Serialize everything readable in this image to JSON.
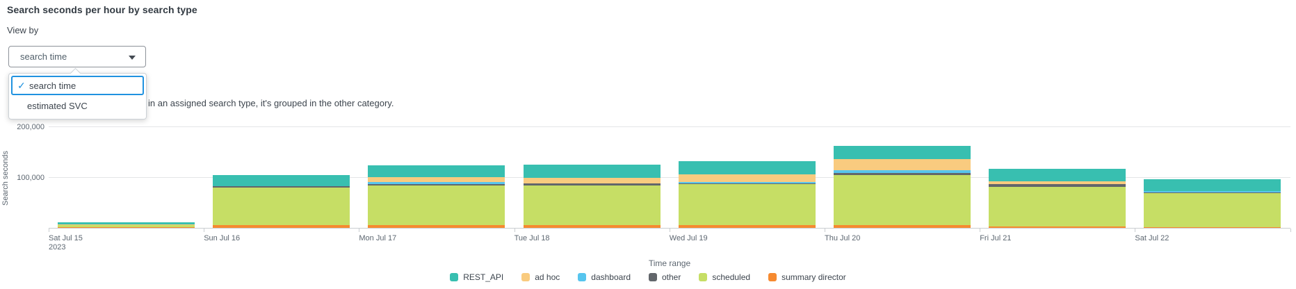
{
  "header": {
    "title": "Search seconds per hour by search type"
  },
  "view_by": {
    "label": "View by",
    "selected_value": "search time",
    "menu": {
      "checkmark_icon": "✓",
      "items": [
        {
          "label": "search time",
          "selected": true
        },
        {
          "label": "estimated SVC",
          "selected": false
        }
      ]
    }
  },
  "note": {
    "visible_text": "in an assigned search type, it's grouped in the other category."
  },
  "accent_color": "#2092e0",
  "chart_data": {
    "type": "bar",
    "stacked": true,
    "ylabel": "Search seconds",
    "xlabel": "Time range",
    "ylim": [
      0,
      220000
    ],
    "grid": true,
    "legend_position": "bottom",
    "yticks": [
      {
        "value": 100000,
        "label": "100,000"
      },
      {
        "value": 200000,
        "label": "200,000"
      }
    ],
    "categories": [
      "Sat Jul 15",
      "Sun Jul 16",
      "Mon Jul 17",
      "Tue Jul 18",
      "Wed Jul 19",
      "Thu Jul 20",
      "Fri Jul 21",
      "Sat Jul 22"
    ],
    "first_tick_year_line": "2023",
    "stack_order_bottom_to_top": [
      "summary director",
      "scheduled",
      "other",
      "dashboard",
      "ad hoc",
      "REST_API"
    ],
    "series": [
      {
        "name": "REST_API",
        "color": "#38bfb0",
        "values": [
          4000,
          21000,
          24000,
          25400,
          26200,
          26000,
          24500,
          23000
        ]
      },
      {
        "name": "ad hoc",
        "color": "#f9cb7f",
        "values": [
          400,
          0,
          10000,
          11400,
          16000,
          22000,
          6000,
          0
        ]
      },
      {
        "name": "dashboard",
        "color": "#57c5ee",
        "values": [
          300,
          0,
          3700,
          0,
          1800,
          5500,
          0,
          3600
        ]
      },
      {
        "name": "other",
        "color": "#62666b",
        "values": [
          400,
          3200,
          3000,
          4600,
          1800,
          3700,
          4600,
          400
        ]
      },
      {
        "name": "scheduled",
        "color": "#c6de65",
        "values": [
          4000,
          74500,
          78500,
          78000,
          81500,
          100000,
          79500,
          67500
        ]
      },
      {
        "name": "summary director",
        "color": "#f68a30",
        "values": [
          1500,
          5500,
          5500,
          5500,
          5500,
          5000,
          2500,
          2000
        ]
      }
    ]
  }
}
